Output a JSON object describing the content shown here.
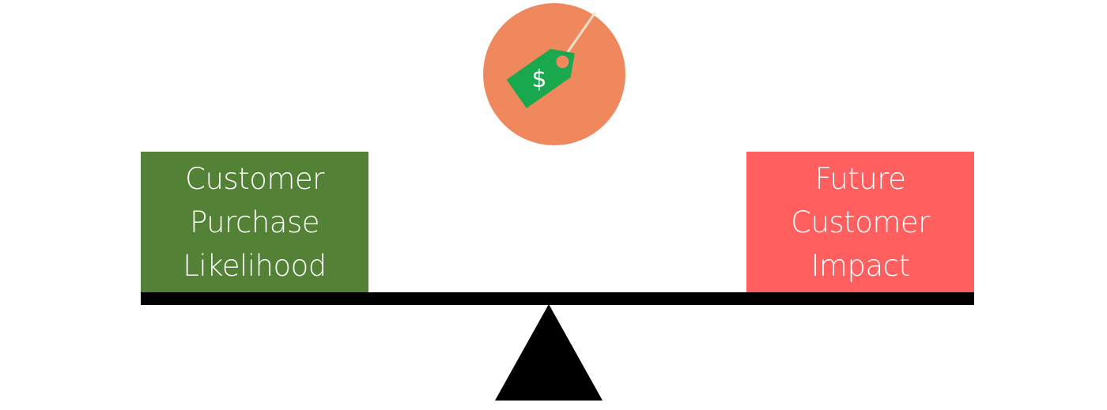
{
  "colors": {
    "left_box": "#538135",
    "right_box": "#ff5f5f",
    "badge_circle": "#f0885e",
    "price_tag": "#1aa84f",
    "beam": "#000000",
    "text": "#ffffff"
  },
  "price_badge": {
    "icon": "price-tag-icon",
    "symbol": "$"
  },
  "left_box": {
    "lines": [
      "Customer",
      "Purchase",
      "Likelihood"
    ]
  },
  "right_box": {
    "lines": [
      "Future",
      "Customer",
      "Impact"
    ]
  }
}
